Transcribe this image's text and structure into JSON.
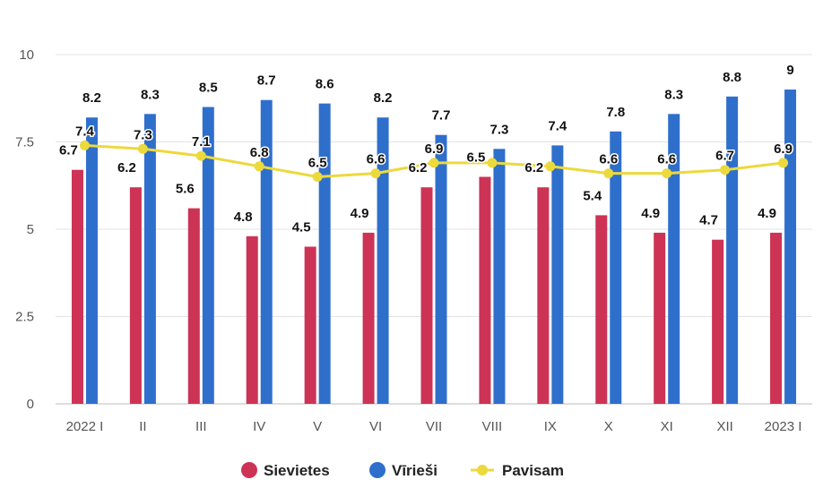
{
  "chart_data": {
    "type": "bar",
    "categories": [
      "2022 I",
      "II",
      "III",
      "IV",
      "V",
      "VI",
      "VII",
      "VIII",
      "IX",
      "X",
      "XI",
      "XII",
      "2023 I"
    ],
    "series": [
      {
        "name": "Sievietes",
        "kind": "bar",
        "color": "#cc3355",
        "values": [
          6.7,
          6.2,
          5.6,
          4.8,
          4.5,
          4.9,
          6.2,
          6.5,
          6.2,
          5.4,
          4.9,
          4.7,
          4.9
        ]
      },
      {
        "name": "Vīrieši",
        "kind": "bar",
        "color": "#2f6fcc",
        "values": [
          8.2,
          8.3,
          8.5,
          8.7,
          8.6,
          8.2,
          7.7,
          7.3,
          7.4,
          7.8,
          8.3,
          8.8,
          9
        ]
      },
      {
        "name": "Pavisam",
        "kind": "line",
        "color": "#ecd93c",
        "values": [
          7.4,
          7.3,
          7.1,
          6.8,
          6.5,
          6.6,
          6.9,
          6.9,
          6.8,
          6.6,
          6.6,
          6.7,
          6.9
        ]
      }
    ],
    "value_labels": {
      "Sievietes": [
        "6.7",
        "6.2",
        "5.6",
        "4.8",
        "4.5",
        "4.9",
        "6.2",
        "6.5",
        "6.2",
        "5.4",
        "4.9",
        "4.7",
        "4.9"
      ],
      "Vīrieši": [
        "8.2",
        "8.3",
        "8.5",
        "8.7",
        "8.6",
        "8.2",
        "7.7",
        "7.3",
        "7.4",
        "7.8",
        "8.3",
        "8.8",
        "9"
      ],
      "Pavisam": [
        "7.4",
        "7.3",
        "7.1",
        "6.8",
        "6.5",
        "6.6",
        "6.9",
        "",
        "",
        "6.6",
        "6.6",
        "6.7",
        "6.9"
      ]
    },
    "yticks": [
      "0",
      "2.5",
      "5",
      "7.5",
      "10"
    ],
    "ylim": [
      0,
      10
    ],
    "grid": true,
    "legend": "bottom-center",
    "title": "",
    "xlabel": "",
    "ylabel": ""
  }
}
